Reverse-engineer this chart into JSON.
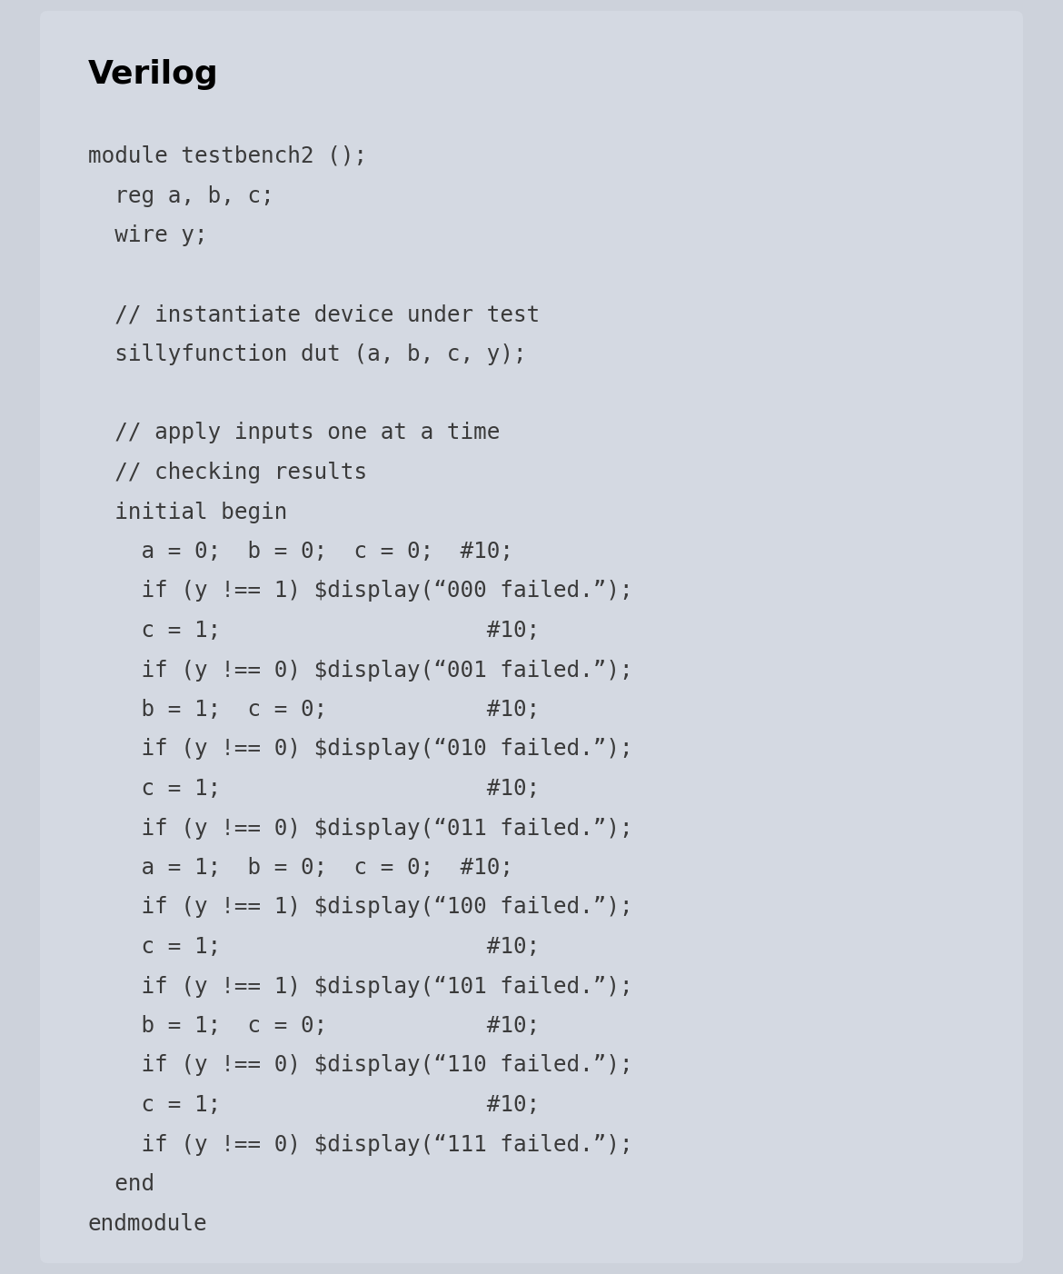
{
  "title": "Verilog",
  "background_color": "#cdd2db",
  "box_color": "#d4d9e2",
  "title_color": "#000000",
  "code_color": "#3a3a3a",
  "title_fontsize": 26,
  "code_fontsize": 17.5,
  "fig_width": 11.7,
  "fig_height": 14.02,
  "lines": [
    "module testbench2 ();",
    "  reg a, b, c;",
    "  wire y;",
    "",
    "  // instantiate device under test",
    "  sillyfunction dut (a, b, c, y);",
    "",
    "  // apply inputs one at a time",
    "  // checking results",
    "  initial begin",
    "    a = 0;  b = 0;  c = 0;  #10;",
    "    if (y !== 1) $display(“000 failed.”);",
    "    c = 1;                    #10;",
    "    if (y !== 0) $display(“001 failed.”);",
    "    b = 1;  c = 0;            #10;",
    "    if (y !== 0) $display(“010 failed.”);",
    "    c = 1;                    #10;",
    "    if (y !== 0) $display(“011 failed.”);",
    "    a = 1;  b = 0;  c = 0;  #10;",
    "    if (y !== 1) $display(“100 failed.”);",
    "    c = 1;                    #10;",
    "    if (y !== 1) $display(“101 failed.”);",
    "    b = 1;  c = 0;            #10;",
    "    if (y !== 0) $display(“110 failed.”);",
    "    c = 1;                    #10;",
    "    if (y !== 0) $display(“111 failed.”);",
    "  end",
    "endmodule"
  ]
}
